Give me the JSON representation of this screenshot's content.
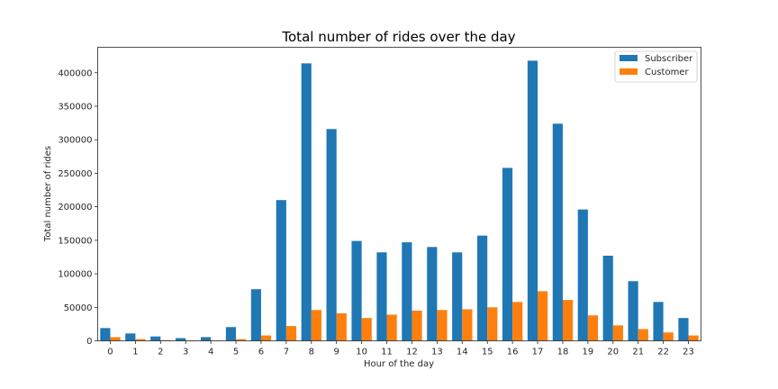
{
  "chart_data": {
    "type": "bar",
    "title": "Total number of rides over the day",
    "xlabel": "Hour of the day",
    "ylabel": "Total number of rides",
    "categories": [
      "0",
      "1",
      "2",
      "3",
      "4",
      "5",
      "6",
      "7",
      "8",
      "9",
      "10",
      "11",
      "12",
      "13",
      "14",
      "15",
      "16",
      "17",
      "18",
      "19",
      "20",
      "21",
      "22",
      "23"
    ],
    "yticks": [
      0,
      50000,
      100000,
      150000,
      200000,
      250000,
      300000,
      350000,
      400000
    ],
    "ylim": [
      0,
      438000
    ],
    "grid": false,
    "legend_position": "top-right",
    "series": [
      {
        "name": "Subscriber",
        "color": "#1f77b4",
        "values": [
          19000,
          11000,
          6500,
          4000,
          5500,
          20500,
          77000,
          210000,
          414000,
          316000,
          149000,
          132000,
          147000,
          140000,
          132000,
          157000,
          258000,
          418000,
          324000,
          196000,
          127000,
          89000,
          58000,
          34000
        ]
      },
      {
        "name": "Customer",
        "color": "#ff7f0e",
        "values": [
          5500,
          2500,
          1000,
          800,
          700,
          2500,
          8000,
          22000,
          46000,
          41000,
          34000,
          39000,
          45000,
          46000,
          47000,
          50000,
          58000,
          74000,
          61000,
          38000,
          23000,
          17500,
          12500,
          8000
        ]
      }
    ]
  }
}
